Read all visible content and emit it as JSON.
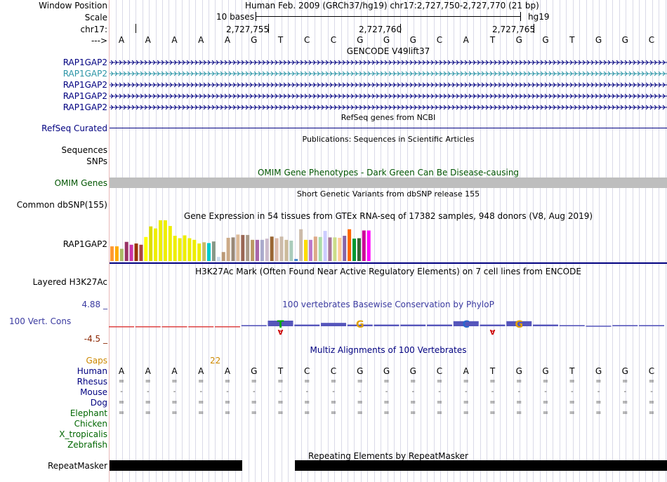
{
  "header": {
    "window_position_label": "Window Position",
    "window_position_value": "Human Feb. 2009 (GRCh37/hg19)   chr17:2,727,750-2,727,770 (21 bp)",
    "scale_label": "Scale",
    "scale_value": "10 bases",
    "assembly": "hg19",
    "chrom_label": "chr17:",
    "coords": [
      "2,727,755",
      "2,727,760",
      "2,727,765"
    ],
    "strand_label": "--->"
  },
  "sequence": [
    "A",
    "A",
    "A",
    "A",
    "A",
    "G",
    "T",
    "C",
    "C",
    "G",
    "G",
    "G",
    "C",
    "A",
    "T",
    "G",
    "G",
    "T",
    "G",
    "G",
    "C"
  ],
  "tracks": {
    "gencode": {
      "title": "GENCODE V49lift37",
      "genes": [
        "RAP1GAP2",
        "RAP1GAP2",
        "RAP1GAP2",
        "RAP1GAP2",
        "RAP1GAP2"
      ],
      "highlight_index": 1
    },
    "refseq": {
      "title": "RefSeq genes from NCBI",
      "label": "RefSeq Curated"
    },
    "publications": {
      "title": "Publications: Sequences in Scientific Articles",
      "labels": [
        "Sequences",
        "SNPs"
      ]
    },
    "omim": {
      "title": "OMIM Gene Phenotypes - Dark Green Can Be Disease-causing",
      "label": "OMIM Genes"
    },
    "dbsnp": {
      "title": "Short Genetic Variants from dbSNP release 155",
      "label": "Common dbSNP(155)"
    },
    "gtex": {
      "title": "Gene Expression in 54 tissues from GTEx RNA-seq of 17382 samples, 948 donors (V8, Aug 2019)",
      "label": "RAP1GAP2",
      "values": [
        0.36,
        0.36,
        0.3,
        0.47,
        0.4,
        0.43,
        0.4,
        0.59,
        0.85,
        0.8,
        1.0,
        1.0,
        0.86,
        0.62,
        0.56,
        0.63,
        0.56,
        0.52,
        0.43,
        0.46,
        0.44,
        0.48,
        0.1,
        0.22,
        0.57,
        0.58,
        0.65,
        0.64,
        0.64,
        0.52,
        0.52,
        0.52,
        0.55,
        0.6,
        0.56,
        0.6,
        0.52,
        0.5,
        0.05,
        0.78,
        0.52,
        0.52,
        0.6,
        0.59,
        0.74,
        0.58,
        0.58,
        0.57,
        0.62,
        0.78,
        0.55,
        0.56,
        0.75,
        0.75
      ],
      "colors": [
        "#ff9933",
        "#ffaa00",
        "#aabb66",
        "#993366",
        "#cc33aa",
        "#993300",
        "#aa4444",
        "#ffff00",
        "#dddd00",
        "#eeee00",
        "#eeee00",
        "#eeee00",
        "#eeee00",
        "#eeee00",
        "#eeee00",
        "#eeee00",
        "#eeee00",
        "#eeee00",
        "#eeee00",
        "#ccbb66",
        "#00cccc",
        "#889988",
        "#ccddee",
        "#bb9977",
        "#ccaa88",
        "#998877",
        "#ddbb99",
        "#996655",
        "#aa9988",
        "#bb9966",
        "#aa66aa",
        "#aaaacc",
        "#ccbbcc",
        "#996633",
        "#ddbbaa",
        "#ccbbaa",
        "#ccbb99",
        "#aaccbb",
        "#4488cc",
        "#ccbbaa",
        "#ffdd00",
        "#bb77cc",
        "#ddaa88",
        "#aaddaa",
        "#ccccff",
        "#aa7799",
        "#ccdd88",
        "#ffcc99",
        "#8866aa",
        "#ff6600",
        "#009933",
        "#336633",
        "#cc0099",
        "#ff00ff"
      ]
    },
    "h3k27ac": {
      "title": "H3K27Ac Mark (Often Found Near Active Regulatory Elements) on 7 cell lines from ENCODE",
      "label": "Layered H3K27Ac"
    },
    "conservation": {
      "title": "100 vertebrates Basewise Conservation by PhyloP",
      "label": "100 Vert. Cons",
      "max": "4.88 _",
      "min": "-4.5 _",
      "values": [
        -0.3,
        -0.3,
        -0.3,
        -0.3,
        -0.3,
        0.2,
        1.0,
        0.3,
        0.6,
        0.3,
        0.3,
        0.3,
        0.3,
        0.9,
        0.3,
        0.9,
        0.3,
        0.2,
        0.1,
        0.2,
        0.2
      ],
      "logo": [
        "",
        "",
        "",
        "",
        "",
        "",
        "T",
        "",
        "",
        "G",
        "",
        "",
        "",
        "C",
        "",
        "G",
        "",
        "",
        "",
        "",
        ""
      ],
      "neg_letters": [
        "",
        "",
        "",
        "",
        "",
        "",
        "A",
        "",
        "",
        "",
        "",
        "",
        "",
        "",
        "A",
        "",
        "",
        "",
        "",
        "",
        ""
      ]
    },
    "multiz": {
      "title": "Multiz Alignments of 100 Vertebrates",
      "gaps_label": "Gaps",
      "gaps_value": "22",
      "species": [
        "Human",
        "Rhesus",
        "Mouse",
        "Dog",
        "Elephant",
        "Chicken",
        "X_tropicalis",
        "Zebrafish"
      ],
      "rows": [
        [
          "A",
          "A",
          "A",
          "A",
          "A",
          "G",
          "T",
          "C",
          "C",
          "G",
          "G",
          "G",
          "C",
          "A",
          "T",
          "G",
          "G",
          "T",
          "G",
          "G",
          "C"
        ],
        [
          "=",
          "=",
          "=",
          "=",
          "=",
          "=",
          "=",
          "=",
          "=",
          "=",
          "=",
          "=",
          "=",
          "=",
          "=",
          "=",
          "=",
          "=",
          "=",
          "=",
          "="
        ],
        [
          "-",
          "-",
          "-",
          "-",
          "-",
          "-",
          "-",
          "-",
          "-",
          "-",
          "-",
          "-",
          "-",
          "-",
          "-",
          "-",
          "-",
          "-",
          "-",
          "-",
          "-"
        ],
        [
          "=",
          "=",
          "=",
          "=",
          "=",
          "=",
          "=",
          "=",
          "=",
          "=",
          "=",
          "=",
          "=",
          "=",
          "=",
          "=",
          "=",
          "=",
          "=",
          "=",
          "="
        ],
        [
          "=",
          "=",
          "=",
          "=",
          "=",
          "=",
          "=",
          "=",
          "=",
          "=",
          "=",
          "=",
          "=",
          "=",
          "=",
          "=",
          "=",
          "=",
          "=",
          "=",
          "="
        ]
      ]
    },
    "repeatmasker": {
      "title": "Repeating Elements by RepeatMasker",
      "label": "RepeatMasker"
    }
  },
  "colors": {
    "navy": "#000080",
    "teal": "#2a94a6",
    "omim_green": "#005500",
    "gaps_orange": "#cc8800",
    "cons_blue": "#3a3aa0",
    "cons_min": "#8b2500",
    "species_blue": "#000080",
    "species_green": "#006600"
  }
}
